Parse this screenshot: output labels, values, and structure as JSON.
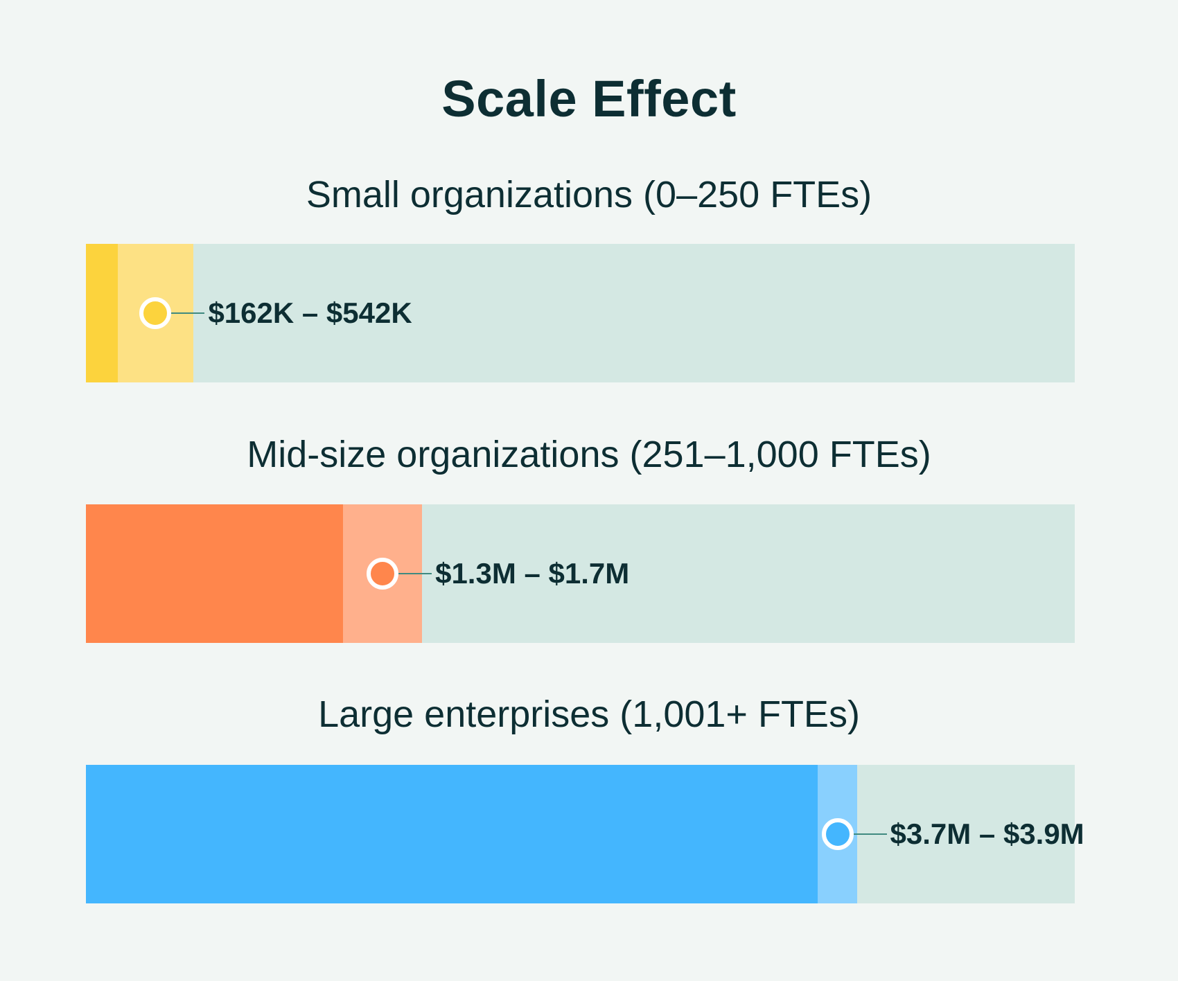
{
  "chart_data": {
    "type": "bar",
    "title": "Scale Effect",
    "xlim": [
      0,
      5000000
    ],
    "unit": "USD",
    "series": [
      {
        "name": "Small organizations (0–250 FTEs)",
        "low": 162000,
        "high": 542000,
        "label": "$162K – $542K",
        "color_dark": "#fcd33d",
        "color_light": "#fde184"
      },
      {
        "name": "Mid-size organizations (251–1,000 FTEs)",
        "low": 1300000,
        "high": 1700000,
        "label": "$1.3M – $1.7M",
        "color_dark": "#ff864c",
        "color_light": "#ffb08c"
      },
      {
        "name": "Large enterprises (1,001+ FTEs)",
        "low": 3700000,
        "high": 3900000,
        "label": "$3.7M – $3.9M",
        "color_dark": "#44b6fe",
        "color_light": "#89d0fe"
      }
    ],
    "track_color": "#d4e8e3"
  }
}
